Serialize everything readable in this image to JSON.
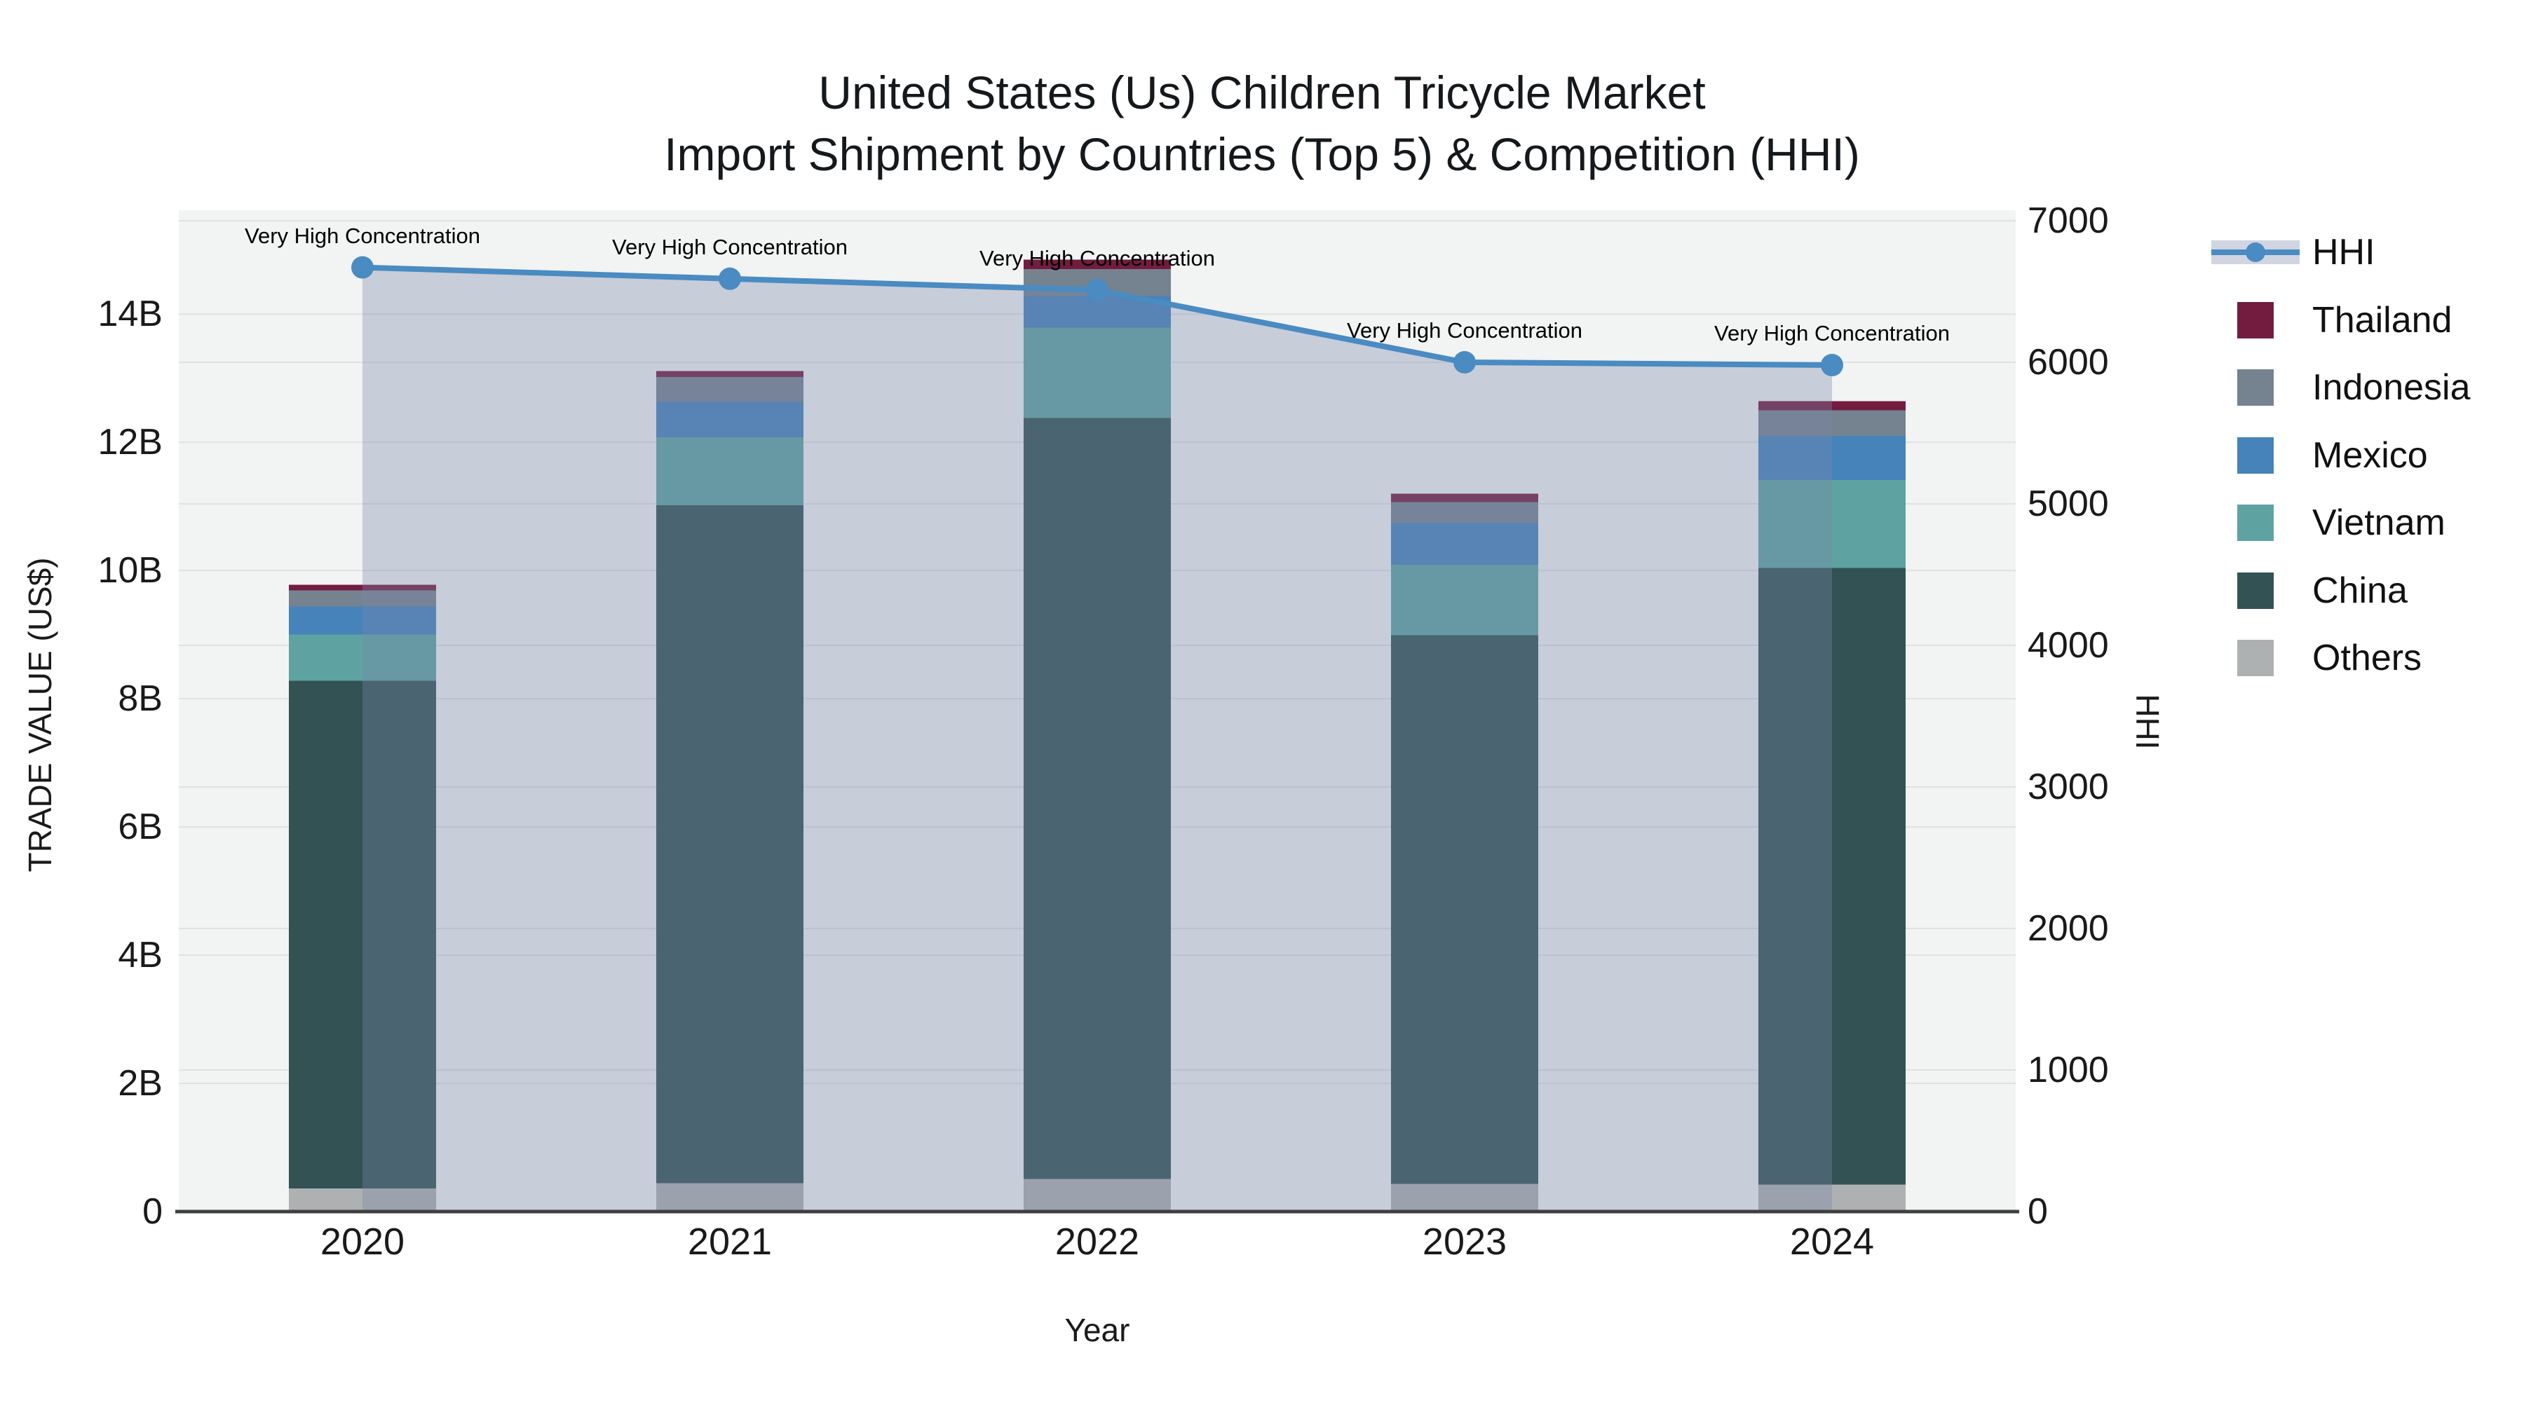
{
  "title": {
    "line1": "United States (Us) Children Tricycle Market",
    "line2": "Import Shipment by Countries (Top 5) & Competition (HHI)"
  },
  "axes": {
    "left": {
      "title": "TRADE VALUE (US$)",
      "ticks": [
        {
          "v": 0,
          "label": "0"
        },
        {
          "v": 2,
          "label": "2B"
        },
        {
          "v": 4,
          "label": "4B"
        },
        {
          "v": 6,
          "label": "6B"
        },
        {
          "v": 8,
          "label": "8B"
        },
        {
          "v": 10,
          "label": "10B"
        },
        {
          "v": 12,
          "label": "12B"
        },
        {
          "v": 14,
          "label": "14B"
        }
      ]
    },
    "right": {
      "title": "HHI",
      "ticks": [
        {
          "v": 0,
          "label": "0"
        },
        {
          "v": 1000,
          "label": "1000"
        },
        {
          "v": 2000,
          "label": "2000"
        },
        {
          "v": 3000,
          "label": "3000"
        },
        {
          "v": 4000,
          "label": "4000"
        },
        {
          "v": 5000,
          "label": "5000"
        },
        {
          "v": 6000,
          "label": "6000"
        },
        {
          "v": 7000,
          "label": "7000"
        }
      ]
    },
    "x": {
      "title": "Year"
    }
  },
  "legend": [
    {
      "label": "HHI",
      "type": "line",
      "color": "#4a8bc2"
    },
    {
      "label": "Thailand",
      "type": "square",
      "color": "#731c40"
    },
    {
      "label": "Indonesia",
      "type": "square",
      "color": "#75828f"
    },
    {
      "label": "Mexico",
      "type": "square",
      "color": "#4583ba"
    },
    {
      "label": "Vietnam",
      "type": "square",
      "color": "#5ea3a2"
    },
    {
      "label": "China",
      "type": "square",
      "color": "#335254"
    },
    {
      "label": "Others",
      "type": "square",
      "color": "#aeb1b1"
    }
  ],
  "colors": {
    "plot_bg": "#f2f3f3",
    "grid": "#dfe1e4",
    "axis_line": "#3f3f3f",
    "hhi_line": "#4a8bc2",
    "hhi_fill": "rgba(120,135,170,0.35)"
  },
  "chart_data": {
    "type": "bar",
    "subtype": "stacked-bars-with-line",
    "categories": [
      "2020",
      "2021",
      "2022",
      "2023",
      "2024"
    ],
    "value_unit": "billion US$",
    "series": [
      {
        "name": "Others",
        "color": "#aeb1b1",
        "values": [
          0.36,
          0.44,
          0.51,
          0.43,
          0.42
        ]
      },
      {
        "name": "China",
        "color": "#335254",
        "values": [
          7.92,
          10.58,
          11.87,
          8.56,
          9.62
        ]
      },
      {
        "name": "Vietnam",
        "color": "#5ea3a2",
        "values": [
          0.72,
          1.06,
          1.41,
          1.1,
          1.37
        ]
      },
      {
        "name": "Mexico",
        "color": "#4583ba",
        "values": [
          0.44,
          0.55,
          0.49,
          0.65,
          0.69
        ]
      },
      {
        "name": "Indonesia",
        "color": "#75828f",
        "values": [
          0.25,
          0.39,
          0.42,
          0.33,
          0.4
        ]
      },
      {
        "name": "Thailand",
        "color": "#731c40",
        "values": [
          0.09,
          0.09,
          0.15,
          0.13,
          0.14
        ]
      }
    ],
    "stack_totals": [
      9.78,
      13.11,
      14.85,
      11.2,
      12.64
    ],
    "line_series": {
      "name": "HHI",
      "color": "#4a8bc2",
      "fill": "rgba(120,135,170,0.35)",
      "values": [
        6670,
        6590,
        6510,
        6000,
        5980
      ]
    },
    "annotations": [
      "Very High Concentration",
      "Very High Concentration",
      "Very High Concentration",
      "Very High Concentration",
      "Very High Concentration"
    ],
    "title": "United States (Us) Children Tricycle Market Import Shipment by Countries (Top 5) & Competition (HHI)",
    "xlabel": "Year",
    "ylabel": "TRADE VALUE (US$)",
    "ylabel_right": "HHI",
    "left_axis_range": [
      0,
      15.62
    ],
    "right_axis_range": [
      0,
      7074
    ],
    "grid": true,
    "legend_position": "right"
  }
}
